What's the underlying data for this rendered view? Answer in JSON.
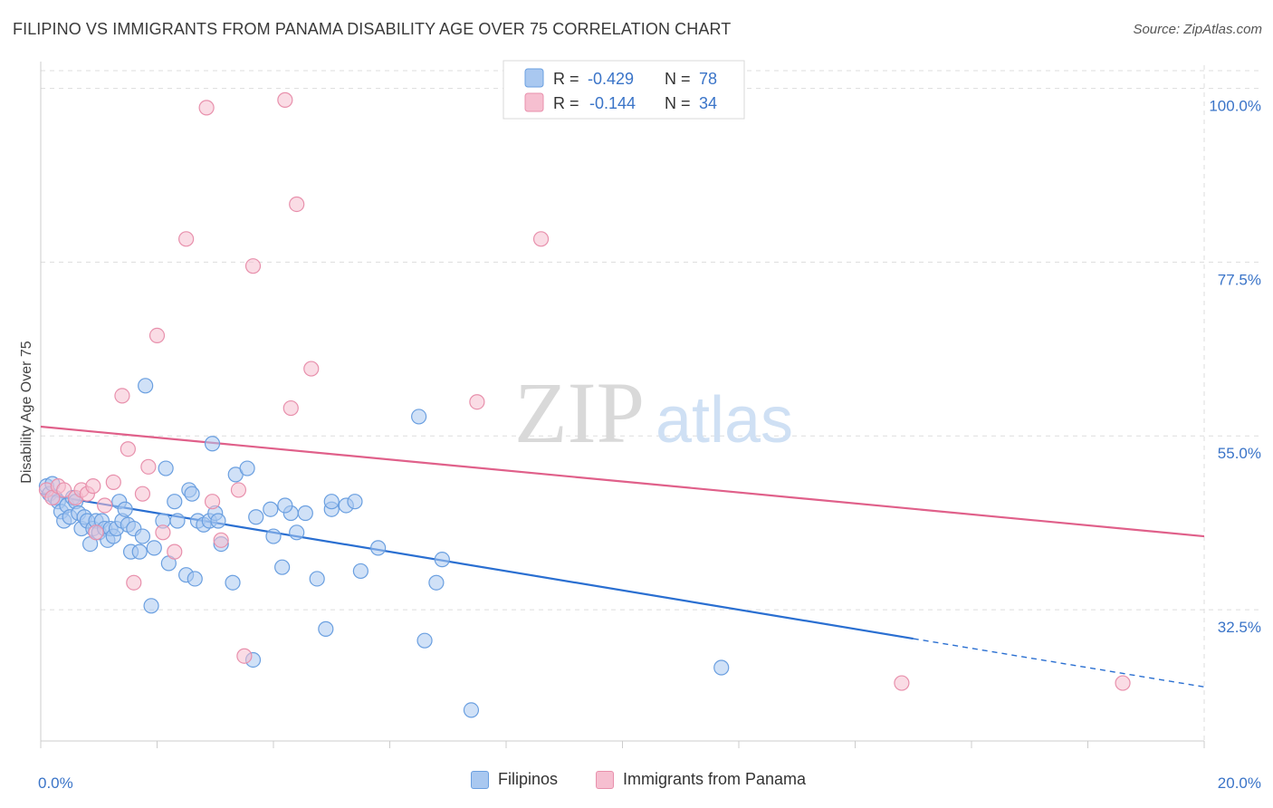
{
  "title": "FILIPINO VS IMMIGRANTS FROM PANAMA DISABILITY AGE OVER 75 CORRELATION CHART",
  "source": "Source: ZipAtlas.com",
  "watermark": {
    "zip": "ZIP",
    "atlas": "atlas"
  },
  "colors": {
    "blue_fill": "#a9c8f0",
    "blue_stroke": "#6a9fe0",
    "blue_line": "#2a6fd1",
    "pink_fill": "#f6bfd0",
    "pink_stroke": "#e890ac",
    "pink_line": "#e0608a",
    "axis_label": "#3a74c8",
    "grid": "#dddddd"
  },
  "legend_top": {
    "rows": [
      {
        "r_label": "R = ",
        "r_value": "-0.429",
        "n_label": "N = ",
        "n_value": "78"
      },
      {
        "r_label": "R = ",
        "r_value": "-0.144",
        "n_label": "N = ",
        "n_value": "34"
      }
    ]
  },
  "legend_bottom": [
    "Filipinos",
    "Immigrants from Panama"
  ],
  "chart_data": {
    "type": "scatter",
    "title": "FILIPINO VS IMMIGRANTS FROM PANAMA DISABILITY AGE OVER 75 CORRELATION CHART",
    "xlabel": "",
    "ylabel": "Disability Age Over 75",
    "xlim": [
      0,
      20
    ],
    "ylim": [
      15.5,
      103
    ],
    "x_tick_labels": [
      "0.0%",
      "20.0%"
    ],
    "x_ticks": [
      0,
      20
    ],
    "y_ticks": [
      32.5,
      55.0,
      77.5,
      100.0
    ],
    "y_tick_labels": [
      "32.5%",
      "55.0%",
      "77.5%",
      "100.0%"
    ],
    "grid": true,
    "legend": "top-center",
    "series": [
      {
        "name": "Filipinos",
        "r": -0.429,
        "n": 78,
        "trend": {
          "x_start": 0,
          "y_start": 47.5,
          "x_solid_end": 15,
          "x_end": 20,
          "y_end": 22.5
        },
        "points": [
          [
            0.1,
            48.5
          ],
          [
            0.15,
            47.5
          ],
          [
            0.2,
            48.8
          ],
          [
            0.25,
            47
          ],
          [
            0.3,
            46.5
          ],
          [
            0.35,
            45.2
          ],
          [
            0.4,
            44
          ],
          [
            0.45,
            46
          ],
          [
            0.5,
            44.5
          ],
          [
            0.55,
            47
          ],
          [
            0.6,
            46.5
          ],
          [
            0.65,
            45
          ],
          [
            0.7,
            43
          ],
          [
            0.75,
            44.5
          ],
          [
            0.8,
            44
          ],
          [
            0.85,
            41
          ],
          [
            0.9,
            43
          ],
          [
            0.95,
            44
          ],
          [
            1.0,
            42.5
          ],
          [
            1.05,
            44
          ],
          [
            1.1,
            43
          ],
          [
            1.15,
            41.5
          ],
          [
            1.2,
            43
          ],
          [
            1.25,
            42
          ],
          [
            1.3,
            43
          ],
          [
            1.35,
            46.5
          ],
          [
            1.4,
            44
          ],
          [
            1.45,
            45.5
          ],
          [
            1.5,
            43.5
          ],
          [
            1.55,
            40
          ],
          [
            1.6,
            43
          ],
          [
            1.7,
            40
          ],
          [
            1.75,
            42
          ],
          [
            1.8,
            61.5
          ],
          [
            1.9,
            33
          ],
          [
            1.95,
            40.5
          ],
          [
            2.1,
            44
          ],
          [
            2.15,
            50.8
          ],
          [
            2.2,
            38.5
          ],
          [
            2.3,
            46.5
          ],
          [
            2.35,
            44
          ],
          [
            2.5,
            37
          ],
          [
            2.55,
            48
          ],
          [
            2.6,
            47.5
          ],
          [
            2.65,
            36.5
          ],
          [
            2.7,
            44
          ],
          [
            2.8,
            43.5
          ],
          [
            2.9,
            44
          ],
          [
            2.95,
            54
          ],
          [
            3.0,
            45
          ],
          [
            3.05,
            44
          ],
          [
            3.1,
            41
          ],
          [
            3.3,
            36
          ],
          [
            3.35,
            50
          ],
          [
            3.55,
            50.8
          ],
          [
            3.65,
            26
          ],
          [
            3.7,
            44.5
          ],
          [
            3.95,
            45.5
          ],
          [
            4.0,
            42
          ],
          [
            4.15,
            38
          ],
          [
            4.3,
            45
          ],
          [
            4.4,
            42.5
          ],
          [
            4.55,
            45
          ],
          [
            4.75,
            36.5
          ],
          [
            4.9,
            30
          ],
          [
            5.0,
            45.5
          ],
          [
            5.25,
            46
          ],
          [
            5.4,
            46.5
          ],
          [
            5.5,
            37.5
          ],
          [
            5.8,
            40.5
          ],
          [
            6.5,
            57.5
          ],
          [
            6.6,
            28.5
          ],
          [
            6.8,
            36
          ],
          [
            6.9,
            39
          ],
          [
            7.4,
            19.5
          ],
          [
            11.7,
            25
          ],
          [
            5.0,
            46.5
          ],
          [
            4.2,
            46
          ]
        ]
      },
      {
        "name": "Immigrants from Panama",
        "r": -0.144,
        "n": 34,
        "trend": {
          "x_start": 0,
          "y_start": 56.2,
          "x_solid_end": 20,
          "x_end": 20,
          "y_end": 42
        },
        "points": [
          [
            0.1,
            48
          ],
          [
            0.2,
            47
          ],
          [
            0.3,
            48.5
          ],
          [
            0.4,
            48
          ],
          [
            0.6,
            47
          ],
          [
            0.7,
            48
          ],
          [
            0.8,
            47.5
          ],
          [
            0.9,
            48.5
          ],
          [
            0.95,
            42.5
          ],
          [
            1.1,
            46
          ],
          [
            1.25,
            49
          ],
          [
            1.4,
            60.2
          ],
          [
            1.5,
            53.3
          ],
          [
            1.6,
            36
          ],
          [
            1.75,
            47.5
          ],
          [
            1.85,
            51
          ],
          [
            2.0,
            68
          ],
          [
            2.1,
            42.5
          ],
          [
            2.3,
            40
          ],
          [
            2.5,
            80.5
          ],
          [
            2.85,
            97.5
          ],
          [
            2.95,
            46.5
          ],
          [
            3.1,
            41.5
          ],
          [
            3.4,
            48
          ],
          [
            3.5,
            26.5
          ],
          [
            3.65,
            77
          ],
          [
            4.2,
            98.5
          ],
          [
            4.3,
            58.6
          ],
          [
            4.4,
            85
          ],
          [
            4.65,
            63.7
          ],
          [
            7.5,
            59.4
          ],
          [
            8.6,
            80.5
          ],
          [
            14.8,
            23
          ],
          [
            18.6,
            23
          ]
        ]
      }
    ]
  }
}
